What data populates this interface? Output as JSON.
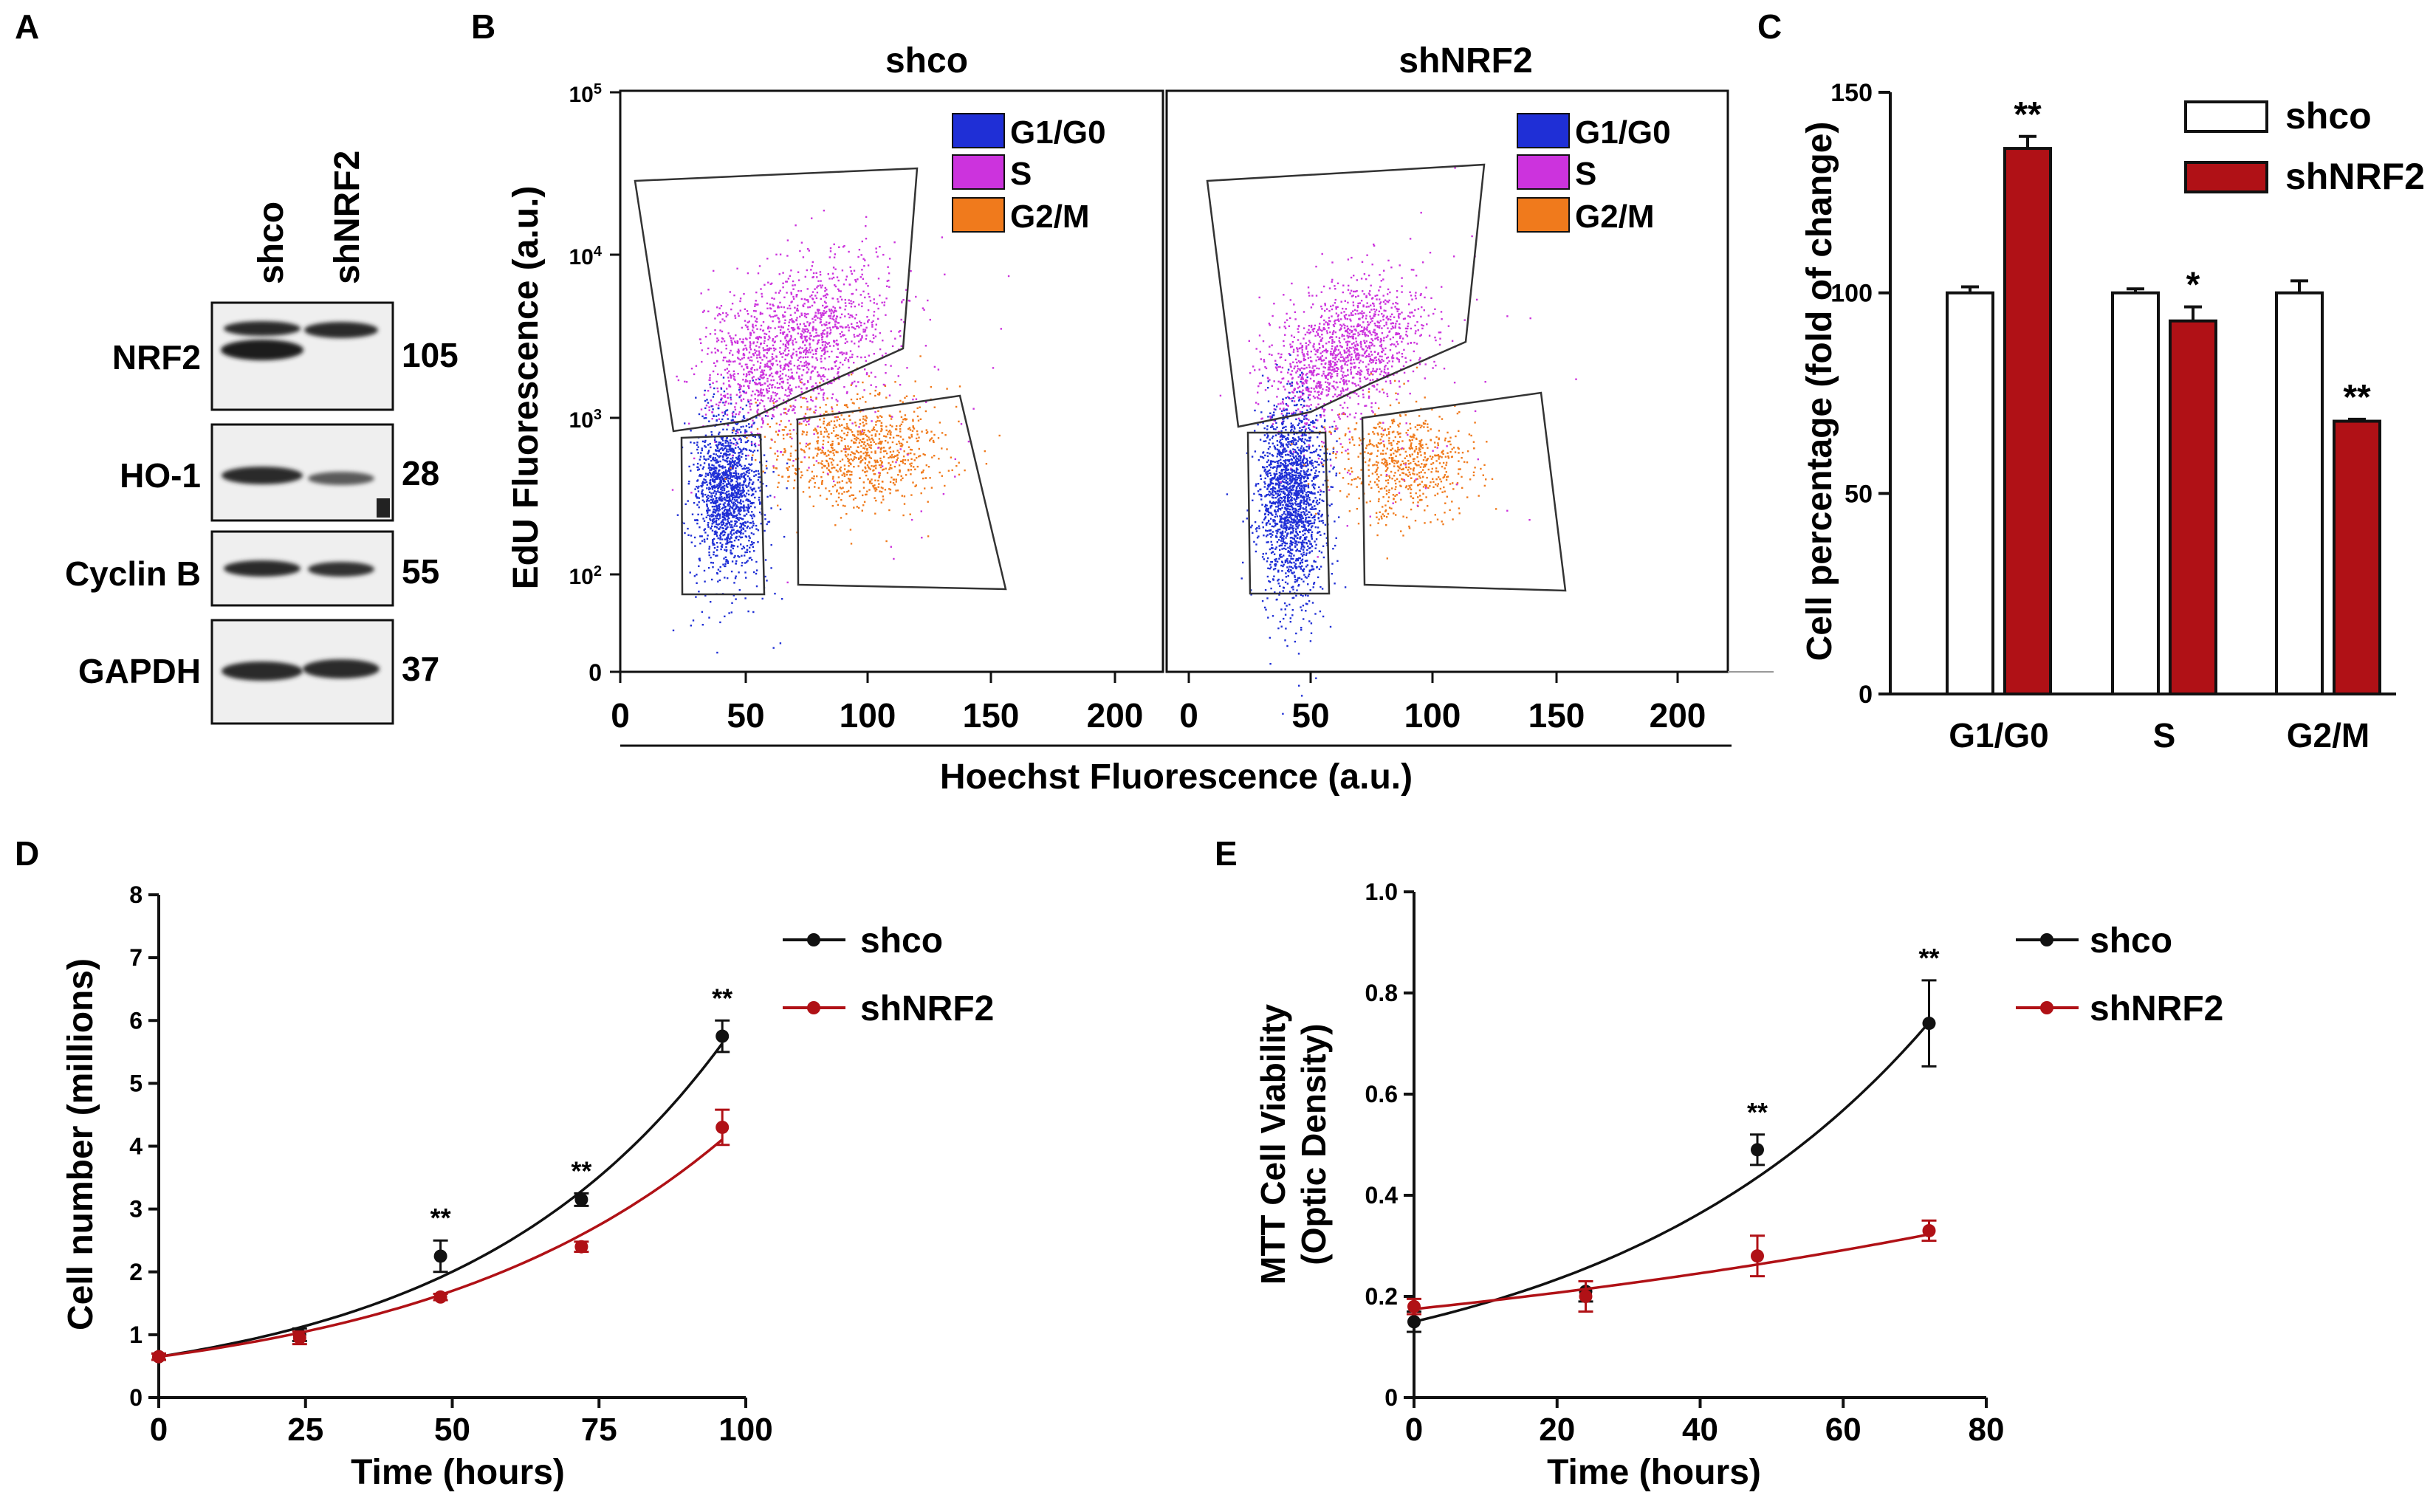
{
  "colors": {
    "black": "#111111",
    "red": "#b01116",
    "g1": "#1f2fd6",
    "s": "#cc33dd",
    "g2": "#f07a1c",
    "blot_bg": "#efefef",
    "band": "#2a2a2a"
  },
  "panels": {
    "a": {
      "letter": "A",
      "lanes": [
        "shco",
        "shNRF2"
      ],
      "rows": [
        {
          "label": "NRF2",
          "mw": "105"
        },
        {
          "label": "HO-1",
          "mw": "28"
        },
        {
          "label": "Cyclin B",
          "mw": "55"
        },
        {
          "label": "GAPDH",
          "mw": "37"
        }
      ]
    },
    "b": {
      "letter": "B",
      "ylabel": "EdU Fluorescence (a.u.)",
      "xlabel": "Hoechst Fluorescence (a.u.)",
      "yticks": [
        {
          "base": "10",
          "exp": "5"
        },
        {
          "base": "10",
          "exp": "4"
        },
        {
          "base": "10",
          "exp": "3"
        },
        {
          "base": "10",
          "exp": "2"
        },
        {
          "base": "0",
          "exp": ""
        }
      ],
      "xticks": [
        "0",
        "50",
        "100",
        "150",
        "200"
      ],
      "legend": [
        "G1/G0",
        "S",
        "G2/M"
      ],
      "plots": [
        {
          "title": "shco"
        },
        {
          "title": "shNRF2"
        }
      ]
    },
    "c": {
      "letter": "C",
      "ylabel": "Cell percentage (fold of change)"
    },
    "d": {
      "letter": "D",
      "ylabel": "Cell number (millions)",
      "xlabel": "Time (hours)"
    },
    "e": {
      "letter": "E",
      "ylabel1": "MTT Cell Viability",
      "ylabel2": "(Optic Density)",
      "xlabel": "Time (hours)"
    }
  },
  "chart_data": [
    {
      "id": "C",
      "type": "bar",
      "categories": [
        "G1/G0",
        "S",
        "G2/M"
      ],
      "series": [
        {
          "name": "shco",
          "values": [
            100,
            100,
            100
          ],
          "errors": [
            1.5,
            1.0,
            3.0
          ],
          "sig": [
            "",
            "",
            ""
          ]
        },
        {
          "name": "shNRF2",
          "values": [
            136,
            93,
            68
          ],
          "errors": [
            3.0,
            3.5,
            0.5
          ],
          "sig": [
            "**",
            "*",
            "**"
          ]
        }
      ],
      "ylim": [
        0,
        150
      ],
      "yticks": [
        "0",
        "50",
        "100",
        "150"
      ],
      "ylabel": "Cell percentage (fold of change)"
    },
    {
      "id": "D",
      "type": "line",
      "xlabel": "Time (hours)",
      "ylabel": "Cell number (millions)",
      "xlim": [
        0,
        100
      ],
      "ylim": [
        0,
        8
      ],
      "xticks": [
        "0",
        "25",
        "50",
        "75",
        "100"
      ],
      "yticks": [
        "0",
        "1",
        "2",
        "3",
        "4",
        "5",
        "6",
        "7",
        "8"
      ],
      "x": [
        0,
        24,
        48,
        72,
        96
      ],
      "series": [
        {
          "name": "shco",
          "values": [
            0.65,
            1.0,
            2.25,
            3.15,
            5.75
          ],
          "errors": [
            0.05,
            0.1,
            0.25,
            0.1,
            0.25
          ],
          "fit_rate": 0.0225
        },
        {
          "name": "shNRF2",
          "values": [
            0.65,
            0.95,
            1.6,
            2.4,
            4.3
          ],
          "errors": [
            0.05,
            0.1,
            0.05,
            0.08,
            0.28
          ],
          "fit_rate": 0.0192
        }
      ],
      "annotations": [
        {
          "x": 48,
          "text": "**"
        },
        {
          "x": 72,
          "text": "**"
        },
        {
          "x": 96,
          "text": "**"
        }
      ]
    },
    {
      "id": "E",
      "type": "line",
      "xlabel": "Time (hours)",
      "ylabel": "MTT Cell Viability (Optic Density)",
      "xlim": [
        0,
        80
      ],
      "ylim": [
        0,
        1.0
      ],
      "xticks": [
        "0",
        "20",
        "40",
        "60",
        "80"
      ],
      "yticks": [
        "0",
        "0.2",
        "0.4",
        "0.6",
        "0.8",
        "1.0"
      ],
      "x": [
        0,
        24,
        48,
        72
      ],
      "series": [
        {
          "name": "shco",
          "values": [
            0.15,
            0.21,
            0.49,
            0.74
          ],
          "errors": [
            0.02,
            0.02,
            0.03,
            0.085
          ],
          "fit_rate": 0.0222,
          "fit_start": 0.15
        },
        {
          "name": "shNRF2",
          "values": [
            0.18,
            0.2,
            0.28,
            0.33
          ],
          "errors": [
            0.015,
            0.03,
            0.04,
            0.02
          ],
          "fit_rate": 0.0085,
          "fit_start": 0.175
        }
      ],
      "annotations": [
        {
          "x": 48,
          "text": "**"
        },
        {
          "x": 72,
          "text": "**"
        }
      ]
    }
  ]
}
